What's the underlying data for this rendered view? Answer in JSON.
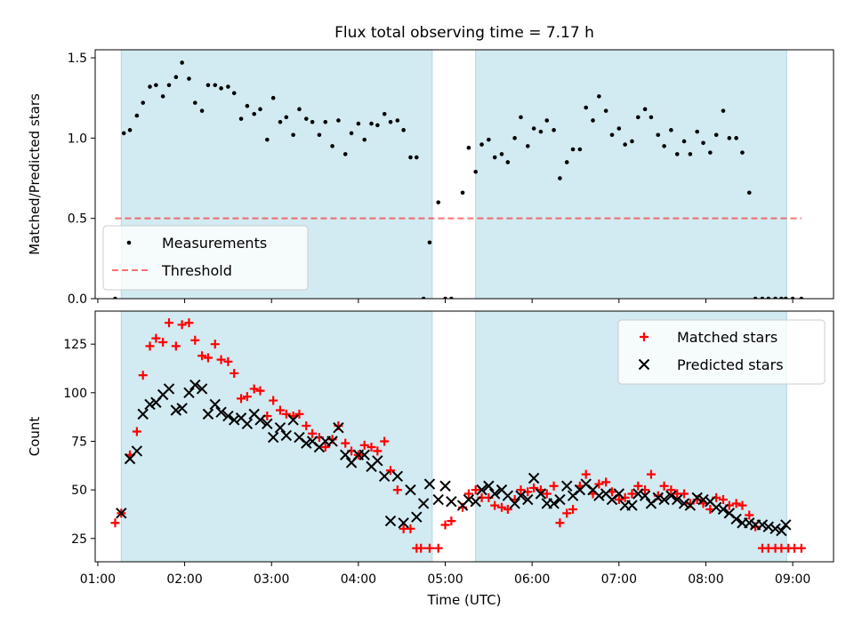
{
  "title": "Flux total observing time = 7.17 h",
  "chart_data": [
    {
      "type": "scatter",
      "ylabel": "Matched/Predicted stars",
      "xlim": [
        0.97,
        9.47
      ],
      "ylim": [
        0,
        1.55
      ],
      "yticks": [
        0.0,
        0.5,
        1.0,
        1.5
      ],
      "ytick_labels": [
        "0.0",
        "0.5",
        "1.0",
        "1.5"
      ],
      "shaded_intervals": [
        [
          1.27,
          4.85
        ],
        [
          5.35,
          8.93
        ]
      ],
      "shade_color": "#add8e6",
      "legend_position": "lower-left",
      "threshold": {
        "name": "Threshold",
        "value": 0.5,
        "x_range": [
          1.2,
          9.1
        ],
        "color": "#ff0000"
      },
      "series": [
        {
          "name": "Measurements",
          "color": "#000000",
          "marker": "dot",
          "x": [
            1.2,
            1.3,
            1.37,
            1.45,
            1.52,
            1.6,
            1.67,
            1.75,
            1.82,
            1.9,
            1.97,
            2.05,
            2.12,
            2.2,
            2.27,
            2.35,
            2.42,
            2.5,
            2.57,
            2.65,
            2.72,
            2.8,
            2.87,
            2.95,
            3.02,
            3.1,
            3.17,
            3.25,
            3.32,
            3.4,
            3.47,
            3.55,
            3.62,
            3.7,
            3.77,
            3.85,
            3.92,
            4.0,
            4.07,
            4.15,
            4.22,
            4.3,
            4.37,
            4.45,
            4.52,
            4.6,
            4.67,
            4.75,
            4.82,
            4.92,
            5.0,
            5.07,
            5.2,
            5.27,
            5.35,
            5.42,
            5.5,
            5.57,
            5.65,
            5.72,
            5.8,
            5.87,
            5.95,
            6.02,
            6.1,
            6.17,
            6.25,
            6.32,
            6.4,
            6.47,
            6.55,
            6.62,
            6.7,
            6.77,
            6.85,
            6.92,
            7.0,
            7.07,
            7.15,
            7.22,
            7.3,
            7.37,
            7.45,
            7.52,
            7.6,
            7.67,
            7.75,
            7.82,
            7.9,
            7.97,
            8.05,
            8.12,
            8.2,
            8.27,
            8.35,
            8.42,
            8.5,
            8.57,
            8.65,
            8.72,
            8.8,
            8.87,
            8.92,
            9.0,
            9.1
          ],
          "y": [
            0.0,
            1.03,
            1.05,
            1.14,
            1.22,
            1.32,
            1.33,
            1.26,
            1.33,
            1.38,
            1.47,
            1.37,
            1.22,
            1.17,
            1.33,
            1.33,
            1.31,
            1.32,
            1.28,
            1.12,
            1.2,
            1.15,
            1.18,
            0.99,
            1.25,
            1.1,
            1.13,
            1.02,
            1.18,
            1.12,
            1.1,
            1.02,
            1.1,
            0.95,
            1.11,
            0.9,
            1.03,
            1.09,
            0.99,
            1.09,
            1.08,
            1.15,
            1.1,
            1.11,
            1.05,
            0.88,
            0.88,
            0.0,
            0.35,
            0.6,
            0.0,
            0.0,
            0.66,
            0.94,
            0.79,
            0.96,
            0.99,
            0.88,
            0.9,
            0.85,
            1.0,
            1.13,
            0.95,
            1.06,
            1.04,
            1.11,
            1.05,
            0.75,
            0.85,
            0.93,
            0.93,
            1.19,
            1.11,
            1.26,
            1.17,
            1.02,
            1.06,
            0.96,
            0.98,
            1.13,
            1.18,
            1.13,
            1.02,
            0.95,
            1.05,
            0.9,
            0.98,
            0.9,
            1.04,
            0.97,
            0.91,
            1.02,
            1.17,
            1.0,
            1.0,
            0.91,
            0.66,
            0.0,
            0.0,
            0.0,
            0.0,
            0.0,
            0.0,
            0.0,
            0.0
          ]
        }
      ]
    },
    {
      "type": "scatter",
      "xlabel": "Time (UTC)",
      "ylabel": "Count",
      "xlim": [
        0.97,
        9.47
      ],
      "ylim": [
        13,
        142
      ],
      "xticks": [
        1,
        2,
        3,
        4,
        5,
        6,
        7,
        8,
        9
      ],
      "xtick_labels": [
        "01:00",
        "02:00",
        "03:00",
        "04:00",
        "05:00",
        "06:00",
        "07:00",
        "08:00",
        "09:00"
      ],
      "yticks": [
        25,
        50,
        75,
        100,
        125
      ],
      "ytick_labels": [
        "25",
        "50",
        "75",
        "100",
        "125"
      ],
      "shaded_intervals": [
        [
          1.27,
          4.85
        ],
        [
          5.35,
          8.93
        ]
      ],
      "shade_color": "#add8e6",
      "legend_position": "upper-right",
      "series": [
        {
          "name": "Matched stars",
          "color": "#ff0000",
          "marker": "plus",
          "x": [
            1.2,
            1.27,
            1.37,
            1.45,
            1.52,
            1.6,
            1.67,
            1.75,
            1.82,
            1.9,
            1.97,
            2.05,
            2.12,
            2.2,
            2.27,
            2.35,
            2.42,
            2.5,
            2.57,
            2.65,
            2.72,
            2.8,
            2.87,
            2.95,
            3.02,
            3.1,
            3.17,
            3.25,
            3.32,
            3.4,
            3.47,
            3.55,
            3.62,
            3.7,
            3.77,
            3.85,
            3.92,
            4.0,
            4.07,
            4.15,
            4.22,
            4.3,
            4.37,
            4.45,
            4.52,
            4.6,
            4.67,
            4.72,
            4.82,
            4.92,
            5.0,
            5.07,
            5.2,
            5.27,
            5.35,
            5.42,
            5.5,
            5.57,
            5.65,
            5.72,
            5.8,
            5.87,
            5.95,
            6.02,
            6.1,
            6.17,
            6.25,
            6.32,
            6.4,
            6.47,
            6.55,
            6.62,
            6.7,
            6.77,
            6.85,
            6.92,
            7.0,
            7.07,
            7.15,
            7.22,
            7.3,
            7.37,
            7.45,
            7.52,
            7.6,
            7.67,
            7.75,
            7.82,
            7.9,
            7.97,
            8.05,
            8.12,
            8.2,
            8.27,
            8.35,
            8.42,
            8.5,
            8.57,
            8.65,
            8.72,
            8.8,
            8.87,
            8.95,
            9.02,
            9.1
          ],
          "y": [
            33,
            38,
            68,
            80,
            109,
            124,
            128,
            126,
            136,
            124,
            135,
            136,
            127,
            119,
            118,
            125,
            117,
            116,
            110,
            97,
            98,
            102,
            101,
            88,
            96,
            91,
            89,
            88,
            89,
            83,
            79,
            77,
            72,
            76,
            83,
            74,
            70,
            68,
            73,
            72,
            70,
            75,
            60,
            50,
            30,
            30,
            20,
            20,
            20,
            20,
            32,
            34,
            41,
            48,
            50,
            46,
            46,
            42,
            41,
            40,
            45,
            50,
            49,
            51,
            50,
            48,
            52,
            33,
            38,
            40,
            52,
            58,
            48,
            53,
            54,
            49,
            45,
            46,
            48,
            52,
            50,
            58,
            47,
            52,
            50,
            48,
            48,
            43,
            45,
            43,
            40,
            46,
            45,
            42,
            43,
            42,
            37,
            31,
            20,
            20,
            20,
            20,
            20,
            20,
            20
          ]
        },
        {
          "name": "Predicted stars",
          "color": "#000000",
          "marker": "x",
          "x": [
            1.27,
            1.37,
            1.45,
            1.52,
            1.6,
            1.67,
            1.75,
            1.82,
            1.9,
            1.97,
            2.05,
            2.12,
            2.2,
            2.27,
            2.35,
            2.42,
            2.5,
            2.57,
            2.65,
            2.72,
            2.8,
            2.87,
            2.95,
            3.02,
            3.1,
            3.17,
            3.25,
            3.32,
            3.4,
            3.47,
            3.55,
            3.62,
            3.7,
            3.77,
            3.85,
            3.92,
            4.0,
            4.07,
            4.15,
            4.22,
            4.3,
            4.37,
            4.45,
            4.52,
            4.6,
            4.67,
            4.75,
            4.82,
            4.92,
            5.0,
            5.07,
            5.2,
            5.27,
            5.35,
            5.42,
            5.5,
            5.57,
            5.65,
            5.72,
            5.8,
            5.87,
            5.95,
            6.02,
            6.1,
            6.17,
            6.25,
            6.32,
            6.4,
            6.47,
            6.55,
            6.62,
            6.7,
            6.77,
            6.85,
            6.92,
            7.0,
            7.07,
            7.15,
            7.22,
            7.3,
            7.37,
            7.45,
            7.52,
            7.6,
            7.67,
            7.75,
            7.82,
            7.9,
            7.97,
            8.05,
            8.12,
            8.2,
            8.27,
            8.35,
            8.42,
            8.5,
            8.57,
            8.65,
            8.72,
            8.8,
            8.87,
            8.92
          ],
          "y": [
            38,
            66,
            70,
            89,
            94,
            95,
            99,
            102,
            91,
            92,
            100,
            104,
            102,
            89,
            94,
            90,
            88,
            86,
            87,
            84,
            89,
            86,
            84,
            77,
            82,
            78,
            86,
            77,
            74,
            75,
            72,
            75,
            75,
            82,
            68,
            64,
            68,
            68,
            62,
            65,
            57,
            34,
            57,
            33,
            50,
            36,
            43,
            53,
            45,
            52,
            44,
            42,
            45,
            44,
            50,
            52,
            48,
            50,
            47,
            43,
            47,
            45,
            56,
            48,
            43,
            43,
            45,
            52,
            47,
            50,
            53,
            50,
            47,
            48,
            45,
            48,
            42,
            42,
            48,
            47,
            43,
            46,
            45,
            47,
            45,
            43,
            42,
            46,
            45,
            44,
            41,
            40,
            38,
            35,
            33,
            33,
            32,
            32,
            31,
            30,
            29,
            32
          ]
        }
      ]
    }
  ]
}
